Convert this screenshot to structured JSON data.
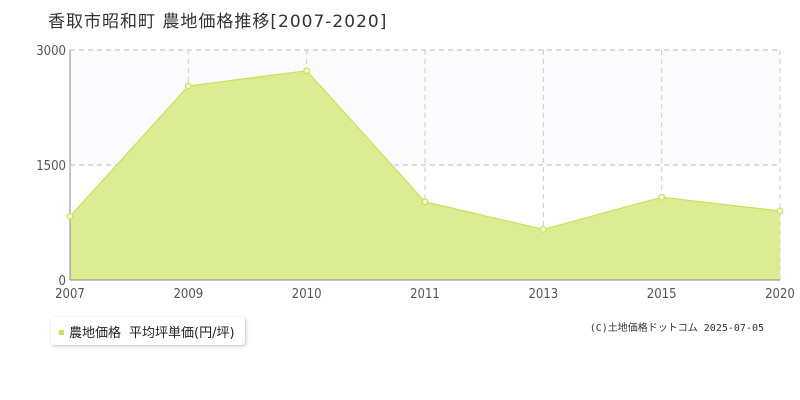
{
  "page": {
    "title": "香取市昭和町 農地価格推移[2007-2020]",
    "copyright": "(C)土地価格ドットコム 2025-07-05"
  },
  "legend": {
    "series_label": "農地価格",
    "unit_label": "平均坪単価(円/坪)"
  },
  "colors": {
    "area_fill": "#dbec93",
    "line": "#c6e35a",
    "point_fill": "#f4f9d8",
    "grid_major": "#bbbbbb",
    "grid_minor": "#cccccc",
    "upper_band": "#fbfbfd"
  },
  "chart_data": {
    "type": "area",
    "title": "香取市昭和町 農地価格推移[2007-2020]",
    "xlabel": "",
    "ylabel": "",
    "x": [
      2007,
      2009,
      2010,
      2011,
      2013,
      2015,
      2020
    ],
    "series": [
      {
        "name": "農地価格",
        "values": [
          830,
          2530,
          2730,
          1020,
          660,
          1080,
          900
        ]
      }
    ],
    "ylim": [
      0,
      3000
    ],
    "yticks": [
      0,
      1500,
      3000
    ],
    "xtick_labels": [
      "2007",
      "2009",
      "2010",
      "2011",
      "2013",
      "2015",
      "2020"
    ],
    "x_spacing": "categorical-equal",
    "grid": true,
    "legend_position": "bottom-left"
  }
}
